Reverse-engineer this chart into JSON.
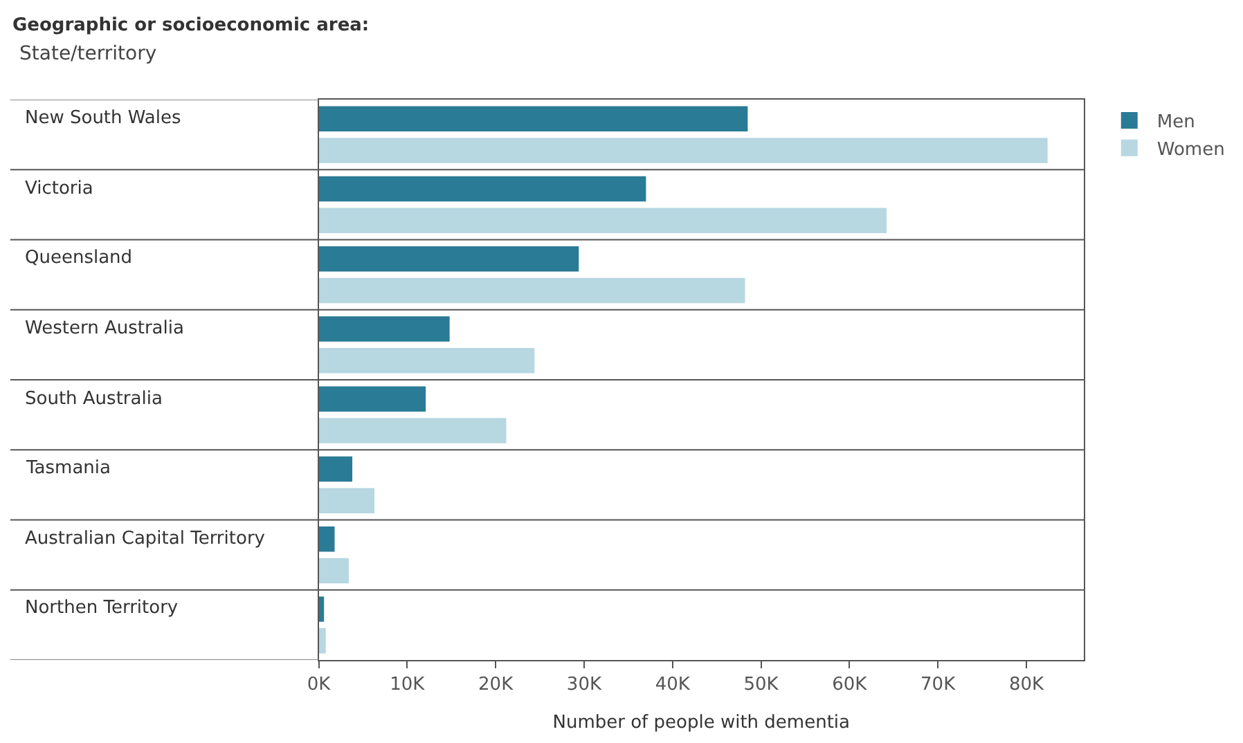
{
  "chart_data": {
    "type": "bar",
    "orientation": "horizontal",
    "title": "Geographic or socioeconomic area:",
    "subtitle": "State/territory",
    "xlabel": "Number of people with dementia",
    "categories": [
      "New South Wales",
      "Victoria",
      "Queensland",
      "Western Australia",
      "South Australia",
      "Tasmania",
      "Australian Capital Territory",
      "Northen Territory"
    ],
    "series": [
      {
        "name": "Men",
        "color": "#2a7b96",
        "values": [
          48500,
          37000,
          29400,
          14800,
          12100,
          3800,
          1800,
          600
        ]
      },
      {
        "name": "Women",
        "color": "#b7d7e1",
        "values": [
          82400,
          64200,
          48200,
          24400,
          21200,
          6300,
          3400,
          800
        ]
      }
    ],
    "xlim": [
      0,
      86500
    ],
    "xticks": [
      {
        "value": 0,
        "label": "0K"
      },
      {
        "value": 10000,
        "label": "10K"
      },
      {
        "value": 20000,
        "label": "20K"
      },
      {
        "value": 30000,
        "label": "30K"
      },
      {
        "value": 40000,
        "label": "40K"
      },
      {
        "value": 50000,
        "label": "50K"
      },
      {
        "value": 60000,
        "label": "60K"
      },
      {
        "value": 70000,
        "label": "70K"
      },
      {
        "value": 80000,
        "label": "80K"
      }
    ],
    "legend": "top right"
  }
}
